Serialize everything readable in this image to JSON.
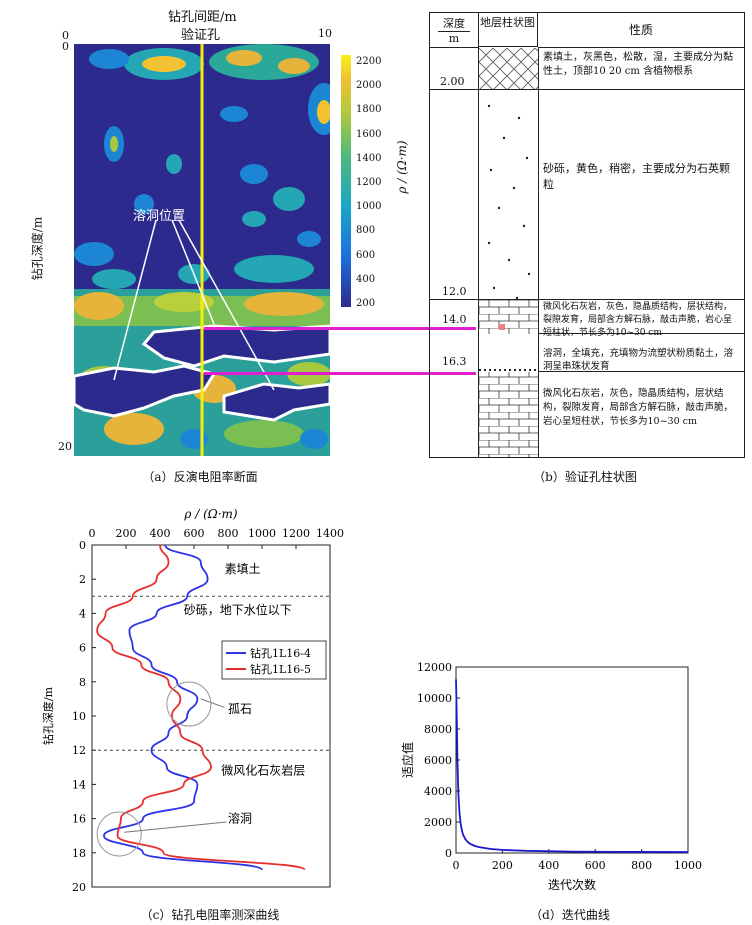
{
  "panel_a": {
    "top_label": "钻孔间距/m",
    "well_label": "验证孔",
    "x_ticks": [
      "0",
      "10"
    ],
    "y_ticks": [
      "0",
      "20"
    ],
    "y_label": "钻孔深度/m",
    "annotation": "溶洞位置",
    "colorbar_ticks": [
      "2200",
      "2000",
      "1800",
      "1600",
      "1400",
      "1200",
      "1000",
      "800",
      "600",
      "400",
      "200"
    ],
    "colorbar_label": "ρ / (Ω·m)",
    "caption": "（a）反演电阻率断面"
  },
  "panel_b": {
    "headers": {
      "depth": "深度",
      "depth_unit": "m",
      "column": "地层柱状图",
      "property": "性质"
    },
    "layers": [
      {
        "depth": "2.00",
        "desc": "素填土，灰黑色，松散，湿，主要成分为黏性土，顶部10 20 cm 含植物根系"
      },
      {
        "depth": "12.0",
        "desc": "砂砾，黄色，稍密，主要成分为石英颗粒"
      },
      {
        "depth": "14.0",
        "desc": "微风化石灰岩，灰色，隐晶质结构，层状结构，裂隙发育，局部含方解石脉，敲击声脆，岩心呈短柱状，节长多为10~30 cm"
      },
      {
        "depth": "16.3",
        "desc": "溶洞，全填充，充填物为流塑状粉质黏土，溶洞呈串珠状发育"
      },
      {
        "depth": "",
        "desc": "微风化石灰岩，灰色，隐晶质结构，层状结构，裂隙发育，局部含方解石脉，敲击声脆，岩心呈短柱状，节长多为10~30 cm"
      }
    ],
    "caption": "（b）验证孔柱状图"
  },
  "panel_c": {
    "caption": "（c）钻孔电阻率测深曲线",
    "labels": [
      "素填土",
      "砂砾，地下水位以下",
      "孤石",
      "微风化石灰岩层",
      "溶洞"
    ],
    "colors": {
      "series1": "#2e33e6",
      "series2": "#e62e2e"
    }
  },
  "panel_d": {
    "caption": "（d）迭代曲线",
    "color": "#1a1acc"
  },
  "chart_data": [
    {
      "type": "line",
      "title": "",
      "xlabel": "ρ / (Ω·m)",
      "ylabel": "钻孔深度/m",
      "xlim": [
        0,
        1400
      ],
      "ylim": [
        20,
        0
      ],
      "x_ticks": [
        "0",
        "200",
        "400",
        "600",
        "800",
        "1000",
        "1200",
        "1400"
      ],
      "y_ticks": [
        "0",
        "2",
        "4",
        "6",
        "8",
        "10",
        "12",
        "14",
        "16",
        "18",
        "20"
      ],
      "legend_position": "right",
      "series": [
        {
          "name": "钻孔1L16-4",
          "depth": [
            0,
            1,
            2,
            3,
            4,
            5,
            6,
            7,
            8,
            9,
            10,
            11,
            12,
            13,
            14,
            15,
            16,
            17,
            18,
            19
          ],
          "rho": [
            430,
            640,
            680,
            560,
            380,
            220,
            240,
            350,
            500,
            620,
            560,
            450,
            350,
            440,
            620,
            600,
            300,
            70,
            300,
            1000
          ]
        },
        {
          "name": "钻孔1L16-5",
          "depth": [
            0,
            1,
            2,
            3,
            4,
            5,
            6,
            7,
            8,
            9,
            10,
            11,
            12,
            13,
            14,
            15,
            16,
            17,
            18,
            19
          ],
          "rho": [
            400,
            450,
            380,
            240,
            80,
            30,
            120,
            290,
            450,
            520,
            470,
            520,
            650,
            700,
            540,
            300,
            170,
            150,
            420,
            1250
          ]
        }
      ],
      "dashed_lines_depth": [
        3,
        12
      ]
    },
    {
      "type": "line",
      "title": "",
      "xlabel": "迭代次数",
      "ylabel": "适应值",
      "xlim": [
        0,
        1000
      ],
      "ylim": [
        0,
        12000
      ],
      "x_ticks": [
        "0",
        "200",
        "400",
        "600",
        "800",
        "1000"
      ],
      "y_ticks": [
        "0",
        "2000",
        "4000",
        "6000",
        "8000",
        "10000",
        "12000"
      ],
      "series": [
        {
          "name": "",
          "x": [
            0,
            3,
            6,
            10,
            15,
            20,
            25,
            30,
            40,
            50,
            60,
            80,
            100,
            150,
            200,
            300,
            500,
            700,
            1000
          ],
          "y": [
            11200,
            9000,
            6200,
            3900,
            2600,
            1900,
            1500,
            1200,
            900,
            720,
            600,
            460,
            380,
            260,
            200,
            140,
            90,
            70,
            60
          ]
        }
      ]
    }
  ]
}
